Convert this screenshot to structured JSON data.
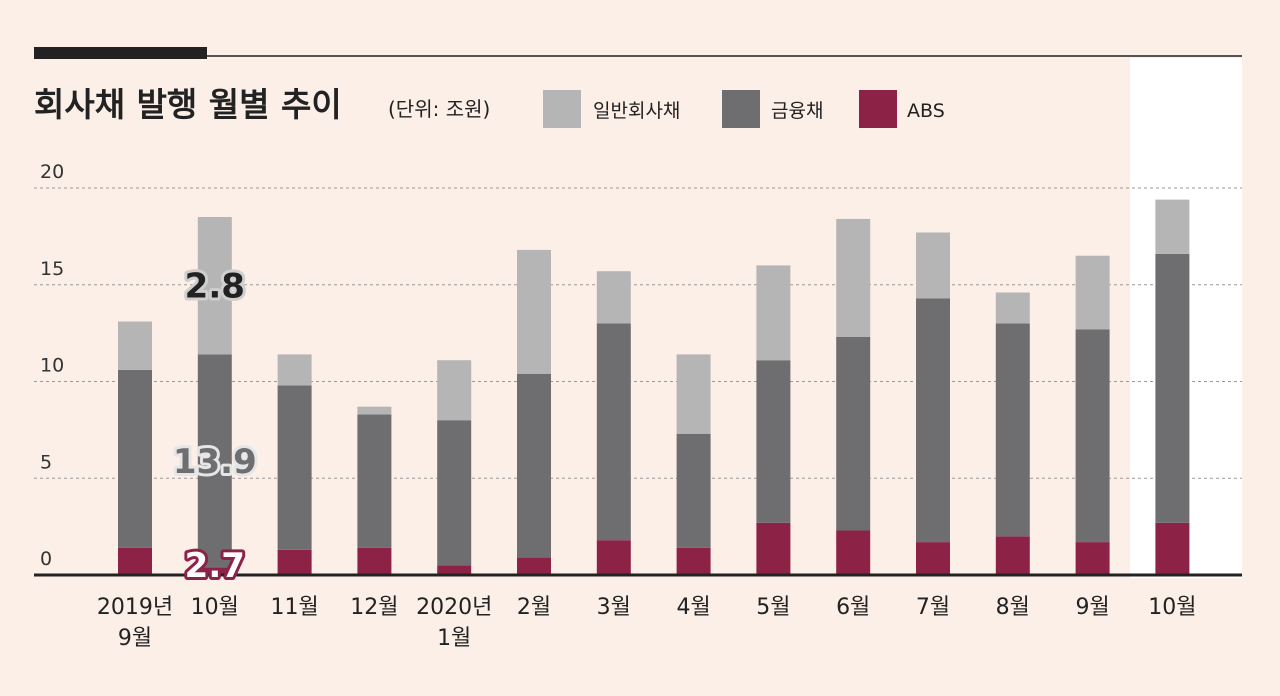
{
  "chart_data": {
    "type": "bar",
    "stacked": true,
    "title": "회사채 발행 월별 추이",
    "unit_label": "(단위: 조원)",
    "categories": [
      "2019년\n9월",
      "10월",
      "11월",
      "12월",
      "2020년\n1월",
      "2월",
      "3월",
      "4월",
      "5월",
      "6월",
      "7월",
      "8월",
      "9월",
      "10월"
    ],
    "series": [
      {
        "name": "ABS",
        "color": "#8c2346",
        "values": [
          1.4,
          0.4,
          1.3,
          1.4,
          0.5,
          0.9,
          1.8,
          1.4,
          2.7,
          2.3,
          1.7,
          2.0,
          1.7,
          2.7
        ]
      },
      {
        "name": "금융채",
        "color": "#6e6e70",
        "values": [
          9.2,
          11.0,
          8.5,
          6.9,
          7.5,
          9.5,
          11.2,
          5.9,
          8.4,
          10.0,
          12.6,
          11.0,
          11.0,
          13.9
        ]
      },
      {
        "name": "일반회사채",
        "color": "#b5b5b5",
        "values": [
          2.5,
          7.1,
          1.6,
          0.4,
          3.1,
          6.4,
          2.7,
          4.1,
          4.9,
          6.1,
          3.4,
          1.6,
          3.8,
          2.8
        ]
      }
    ],
    "legend_order": [
      "일반회사채",
      "금융채",
      "ABS"
    ],
    "ylim": [
      0,
      20
    ],
    "yticks": [
      0,
      5,
      10,
      15,
      20
    ],
    "grid": true,
    "highlight_category": "10월",
    "annotations": [
      "2.8",
      "13.9",
      "2.7"
    ]
  }
}
